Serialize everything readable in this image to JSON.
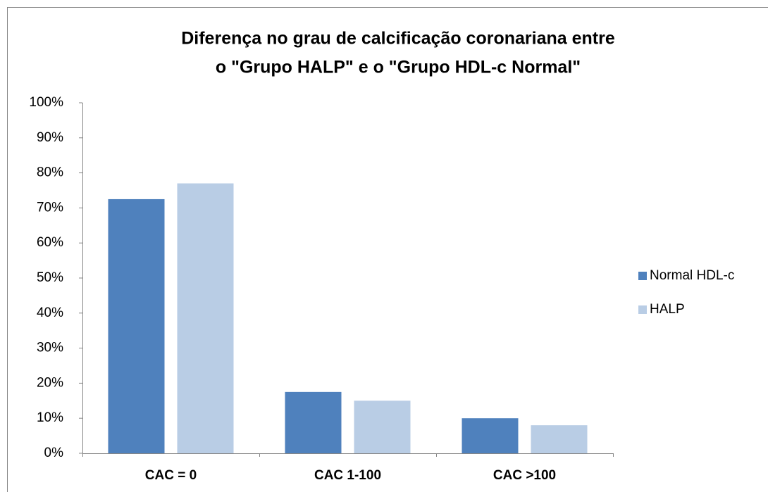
{
  "chart_data": {
    "type": "bar",
    "title": [
      "Diferença no grau de calcificação coronariana entre",
      "o \"Grupo HALP\" e o \"Grupo HDL-c Normal\""
    ],
    "categories": [
      "CAC = 0",
      "CAC 1-100",
      "CAC >100"
    ],
    "series": [
      {
        "name": "Normal HDL-c",
        "color": "#4f81bd",
        "values": [
          72.5,
          17.5,
          10
        ]
      },
      {
        "name": "HALP",
        "color": "#b9cde5",
        "values": [
          77,
          15,
          8
        ]
      }
    ],
    "ylim": [
      0,
      100
    ],
    "yticks": [
      {
        "value": 0,
        "label": "0%"
      },
      {
        "value": 10,
        "label": "10%"
      },
      {
        "value": 20,
        "label": "20%"
      },
      {
        "value": 30,
        "label": "30%"
      },
      {
        "value": 40,
        "label": "40%"
      },
      {
        "value": 50,
        "label": "50%"
      },
      {
        "value": 60,
        "label": "60%"
      },
      {
        "value": 70,
        "label": "70%"
      },
      {
        "value": 80,
        "label": "80%"
      },
      {
        "value": 90,
        "label": "90%"
      },
      {
        "value": 100,
        "label": "100%"
      }
    ],
    "grid": false,
    "legend": "right"
  }
}
